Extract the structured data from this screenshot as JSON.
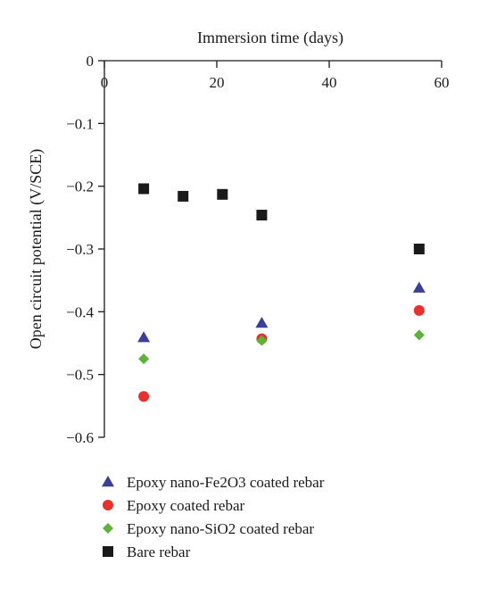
{
  "chart_data": {
    "type": "scatter",
    "xlabel": "Immersion time (days)",
    "ylabel": "Open circuit potential (V/SCE)",
    "xlim": [
      0,
      60
    ],
    "ylim": [
      -0.6,
      0
    ],
    "x_axis_position": "top",
    "x_ticks": [
      0,
      20,
      40,
      60
    ],
    "x_tick_labels": [
      "0",
      "20",
      "40",
      "60"
    ],
    "y_ticks": [
      0,
      -0.1,
      -0.2,
      -0.3,
      -0.4,
      -0.5,
      -0.6
    ],
    "y_tick_labels": [
      "0",
      "−0.1",
      "−0.2",
      "−0.3",
      "−0.4",
      "−0.5",
      "−0.6"
    ],
    "grid": false,
    "legend_position": "bottom",
    "series": [
      {
        "name": "Epoxy nano-Fe2O3 coated rebar",
        "marker": "triangle",
        "color": "#3a3f97",
        "points": [
          {
            "x": 7,
            "y": -0.441
          },
          {
            "x": 28,
            "y": -0.418
          },
          {
            "x": 56,
            "y": -0.362
          }
        ]
      },
      {
        "name": "Epoxy coated rebar",
        "marker": "circle",
        "color": "#e8312a",
        "points": [
          {
            "x": 7,
            "y": -0.535
          },
          {
            "x": 28,
            "y": -0.443
          },
          {
            "x": 56,
            "y": -0.398
          }
        ]
      },
      {
        "name": "Epoxy nano-SiO2 coated rebar",
        "marker": "diamond",
        "color": "#5db338",
        "points": [
          {
            "x": 7,
            "y": -0.475
          },
          {
            "x": 28,
            "y": -0.446
          },
          {
            "x": 56,
            "y": -0.437
          }
        ]
      },
      {
        "name": "Bare rebar",
        "marker": "square",
        "color": "#1a1a1a",
        "points": [
          {
            "x": 7,
            "y": -0.204
          },
          {
            "x": 14,
            "y": -0.216
          },
          {
            "x": 21,
            "y": -0.213
          },
          {
            "x": 28,
            "y": -0.246
          },
          {
            "x": 56,
            "y": -0.3
          }
        ]
      }
    ]
  }
}
